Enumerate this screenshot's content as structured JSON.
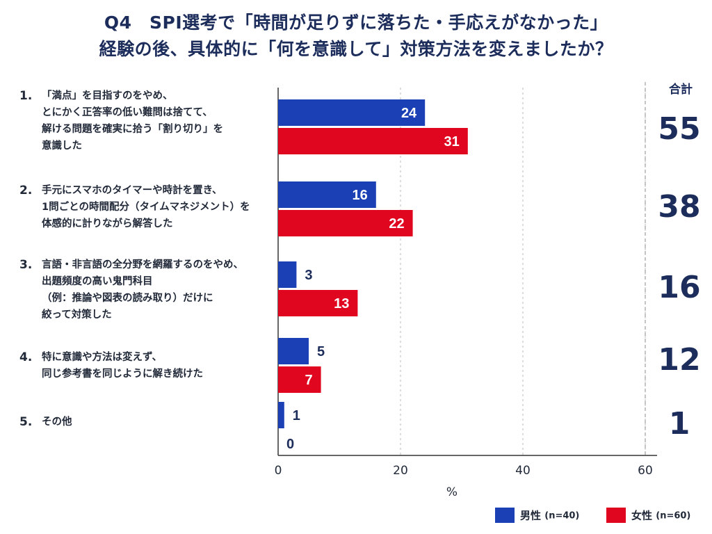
{
  "title": {
    "line1": "Q4　SPI選考で「時間が足りずに落ちた・手応えがなかった」",
    "line2": "経験の後、具体的に「何を意識して」対策方法を変えましたか？"
  },
  "total_header": "合計",
  "colors": {
    "male": "#1b3fb5",
    "female": "#e0061f",
    "axis": "#333333"
  },
  "legend": {
    "male": {
      "label": "男性",
      "n": "(n=40)"
    },
    "female": {
      "label": "女性",
      "n": "(n=60)"
    }
  },
  "chart_data": {
    "type": "bar",
    "orientation": "horizontal",
    "xlabel": "%",
    "xlim": [
      0,
      60
    ],
    "xticks": [
      0,
      20,
      40,
      60
    ],
    "categories": [
      {
        "num": "1.",
        "text": "「満点」を目指すのをやめ、\nとにかく正答率の低い難問は捨てて、\n解ける問題を確実に拾う「割り切り」を\n意識した",
        "total": "55"
      },
      {
        "num": "2.",
        "text": "手元にスマホのタイマーや時計を置き、\n1問ごとの時間配分（タイムマネジメント）を\n体感的に計りながら解答した",
        "total": "38"
      },
      {
        "num": "3.",
        "text": "言語・非言語の全分野を網羅するのをやめ、\n出題頻度の高い鬼門科目\n（例：推論や図表の読み取り）だけに\n絞って対策した",
        "total": "16"
      },
      {
        "num": "4.",
        "text": "特に意識や方法は変えず、\n同じ参考書を同じように解き続けた",
        "total": "12"
      },
      {
        "num": "5.",
        "text": "その他",
        "total": "1"
      }
    ],
    "series": [
      {
        "name": "男性",
        "values": [
          24,
          16,
          3,
          5,
          1
        ]
      },
      {
        "name": "女性",
        "values": [
          31,
          22,
          13,
          7,
          0
        ]
      }
    ]
  }
}
